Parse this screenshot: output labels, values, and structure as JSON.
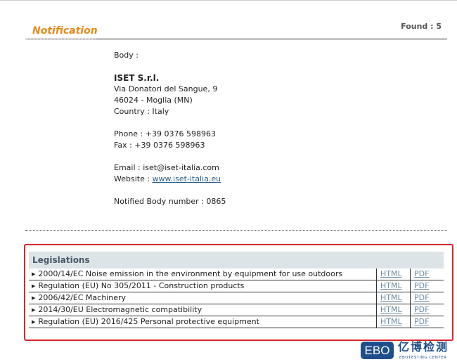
{
  "header": {
    "title": "Notification",
    "found": "Found : 5"
  },
  "body": {
    "label": "Body :",
    "name": "ISET S.r.l.",
    "address": "Via Donatori del Sangue, 9",
    "city": "46024 - Moglia (MN)",
    "country": "Country : Italy",
    "phone": "Phone : +39 0376 598963",
    "fax": "Fax : +39 0376 598963",
    "email": "Email : iset@iset-italia.com",
    "website_label": "Website : ",
    "website": "www.iset-italia.eu",
    "nb_number": "Notified Body number : 0865"
  },
  "legislations": {
    "title": "Legislations",
    "rows": [
      {
        "name": "2000/14/EC Noise emission in the environment by equipment for use outdoors",
        "html": "HTML",
        "pdf": "PDF"
      },
      {
        "name": "Regulation (EU) No 305/2011 - Construction products",
        "html": "HTML",
        "pdf": "PDF"
      },
      {
        "name": "2006/42/EC Machinery",
        "html": "HTML",
        "pdf": "PDF"
      },
      {
        "name": "2014/30/EU Electromagnetic compatibility",
        "html": "HTML",
        "pdf": "PDF"
      },
      {
        "name": "Regulation (EU) 2016/425 Personal protective equipment",
        "html": "HTML",
        "pdf": "PDF"
      }
    ]
  },
  "watermark": {
    "logo": "EBO",
    "cn": "亿博检测",
    "en": "EBOTESTING CENTER"
  },
  "colors": {
    "title": "#e8891a",
    "highlight": "#d9262a",
    "logo": "#1f4e8c"
  }
}
